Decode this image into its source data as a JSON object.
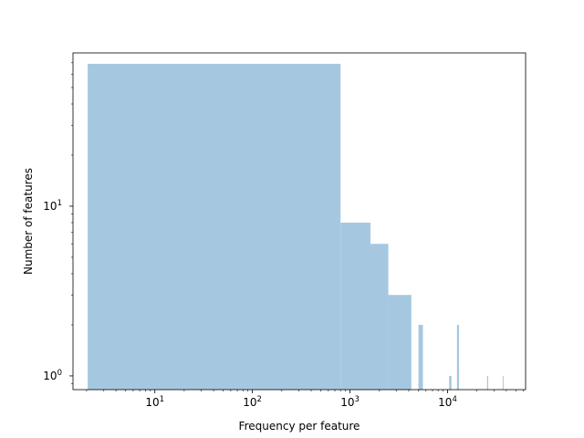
{
  "chart_data": {
    "type": "bar",
    "title": "",
    "xlabel": "Frequency per feature",
    "ylabel": "Number of features",
    "x_scale": "log",
    "y_scale": "log",
    "xlim": [
      1.45,
      63000
    ],
    "ylim": [
      0.83,
      80
    ],
    "grid": false,
    "legend": "none",
    "bar_color": "#a5c8e0",
    "x_ticks": [
      {
        "base": "10",
        "exp": "1",
        "value": 10
      },
      {
        "base": "10",
        "exp": "2",
        "value": 100
      },
      {
        "base": "10",
        "exp": "3",
        "value": 1000
      },
      {
        "base": "10",
        "exp": "4",
        "value": 10000
      }
    ],
    "y_ticks": [
      {
        "base": "10",
        "exp": "0",
        "value": 1
      },
      {
        "base": "10",
        "exp": "1",
        "value": 10
      }
    ],
    "bins": [
      {
        "x_start": 2.05,
        "x_end": 800,
        "count": 69
      },
      {
        "x_start": 800,
        "x_end": 1620,
        "count": 8
      },
      {
        "x_start": 1620,
        "x_end": 2470,
        "count": 6
      },
      {
        "x_start": 2470,
        "x_end": 4250,
        "count": 3
      },
      {
        "x_start": 5030,
        "x_end": 5590,
        "count": 2
      },
      {
        "x_start": 10370,
        "x_end": 10960,
        "count": 1
      },
      {
        "x_start": 12480,
        "x_end": 13090,
        "count": 2
      },
      {
        "x_start": 25380,
        "x_end": 26070,
        "count": 1
      },
      {
        "x_start": 36670,
        "x_end": 37390,
        "count": 1
      }
    ]
  }
}
